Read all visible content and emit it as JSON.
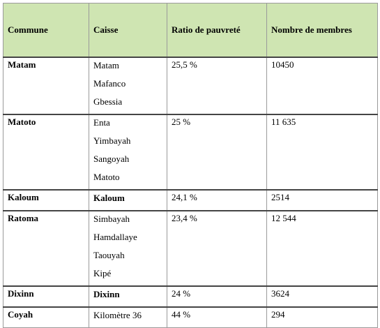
{
  "headers": {
    "commune": "Commune",
    "caisse": "Caisse",
    "ratio": "Ratio de pauvreté",
    "membres": "Nombre de membres"
  },
  "rows": [
    {
      "commune": "Matam",
      "caisses": [
        "Matam",
        "Mafanco",
        "Gbessia"
      ],
      "ratio": "25,5 %",
      "membres": "10450"
    },
    {
      "commune": "Matoto",
      "caisses": [
        "Enta",
        "Yimbayah",
        "Sangoyah",
        "Matoto"
      ],
      "ratio": "25 %",
      "membres": "11 635"
    },
    {
      "commune": "Kaloum",
      "caisses": [
        "Kaloum"
      ],
      "ratio": "24,1 %",
      "membres": "2514"
    },
    {
      "commune": "Ratoma",
      "caisses": [
        "Simbayah",
        "Hamdallaye",
        "Taouyah",
        "Kipé"
      ],
      "ratio": "23,4 %",
      "membres": "12 544"
    },
    {
      "commune": "Dixinn",
      "caisses": [
        "Dixinn"
      ],
      "ratio": "24 %",
      "membres": "3624"
    },
    {
      "commune": "Coyah",
      "caisses": [
        "Kilomètre 36"
      ],
      "ratio": "44 %",
      "membres": "294"
    }
  ]
}
